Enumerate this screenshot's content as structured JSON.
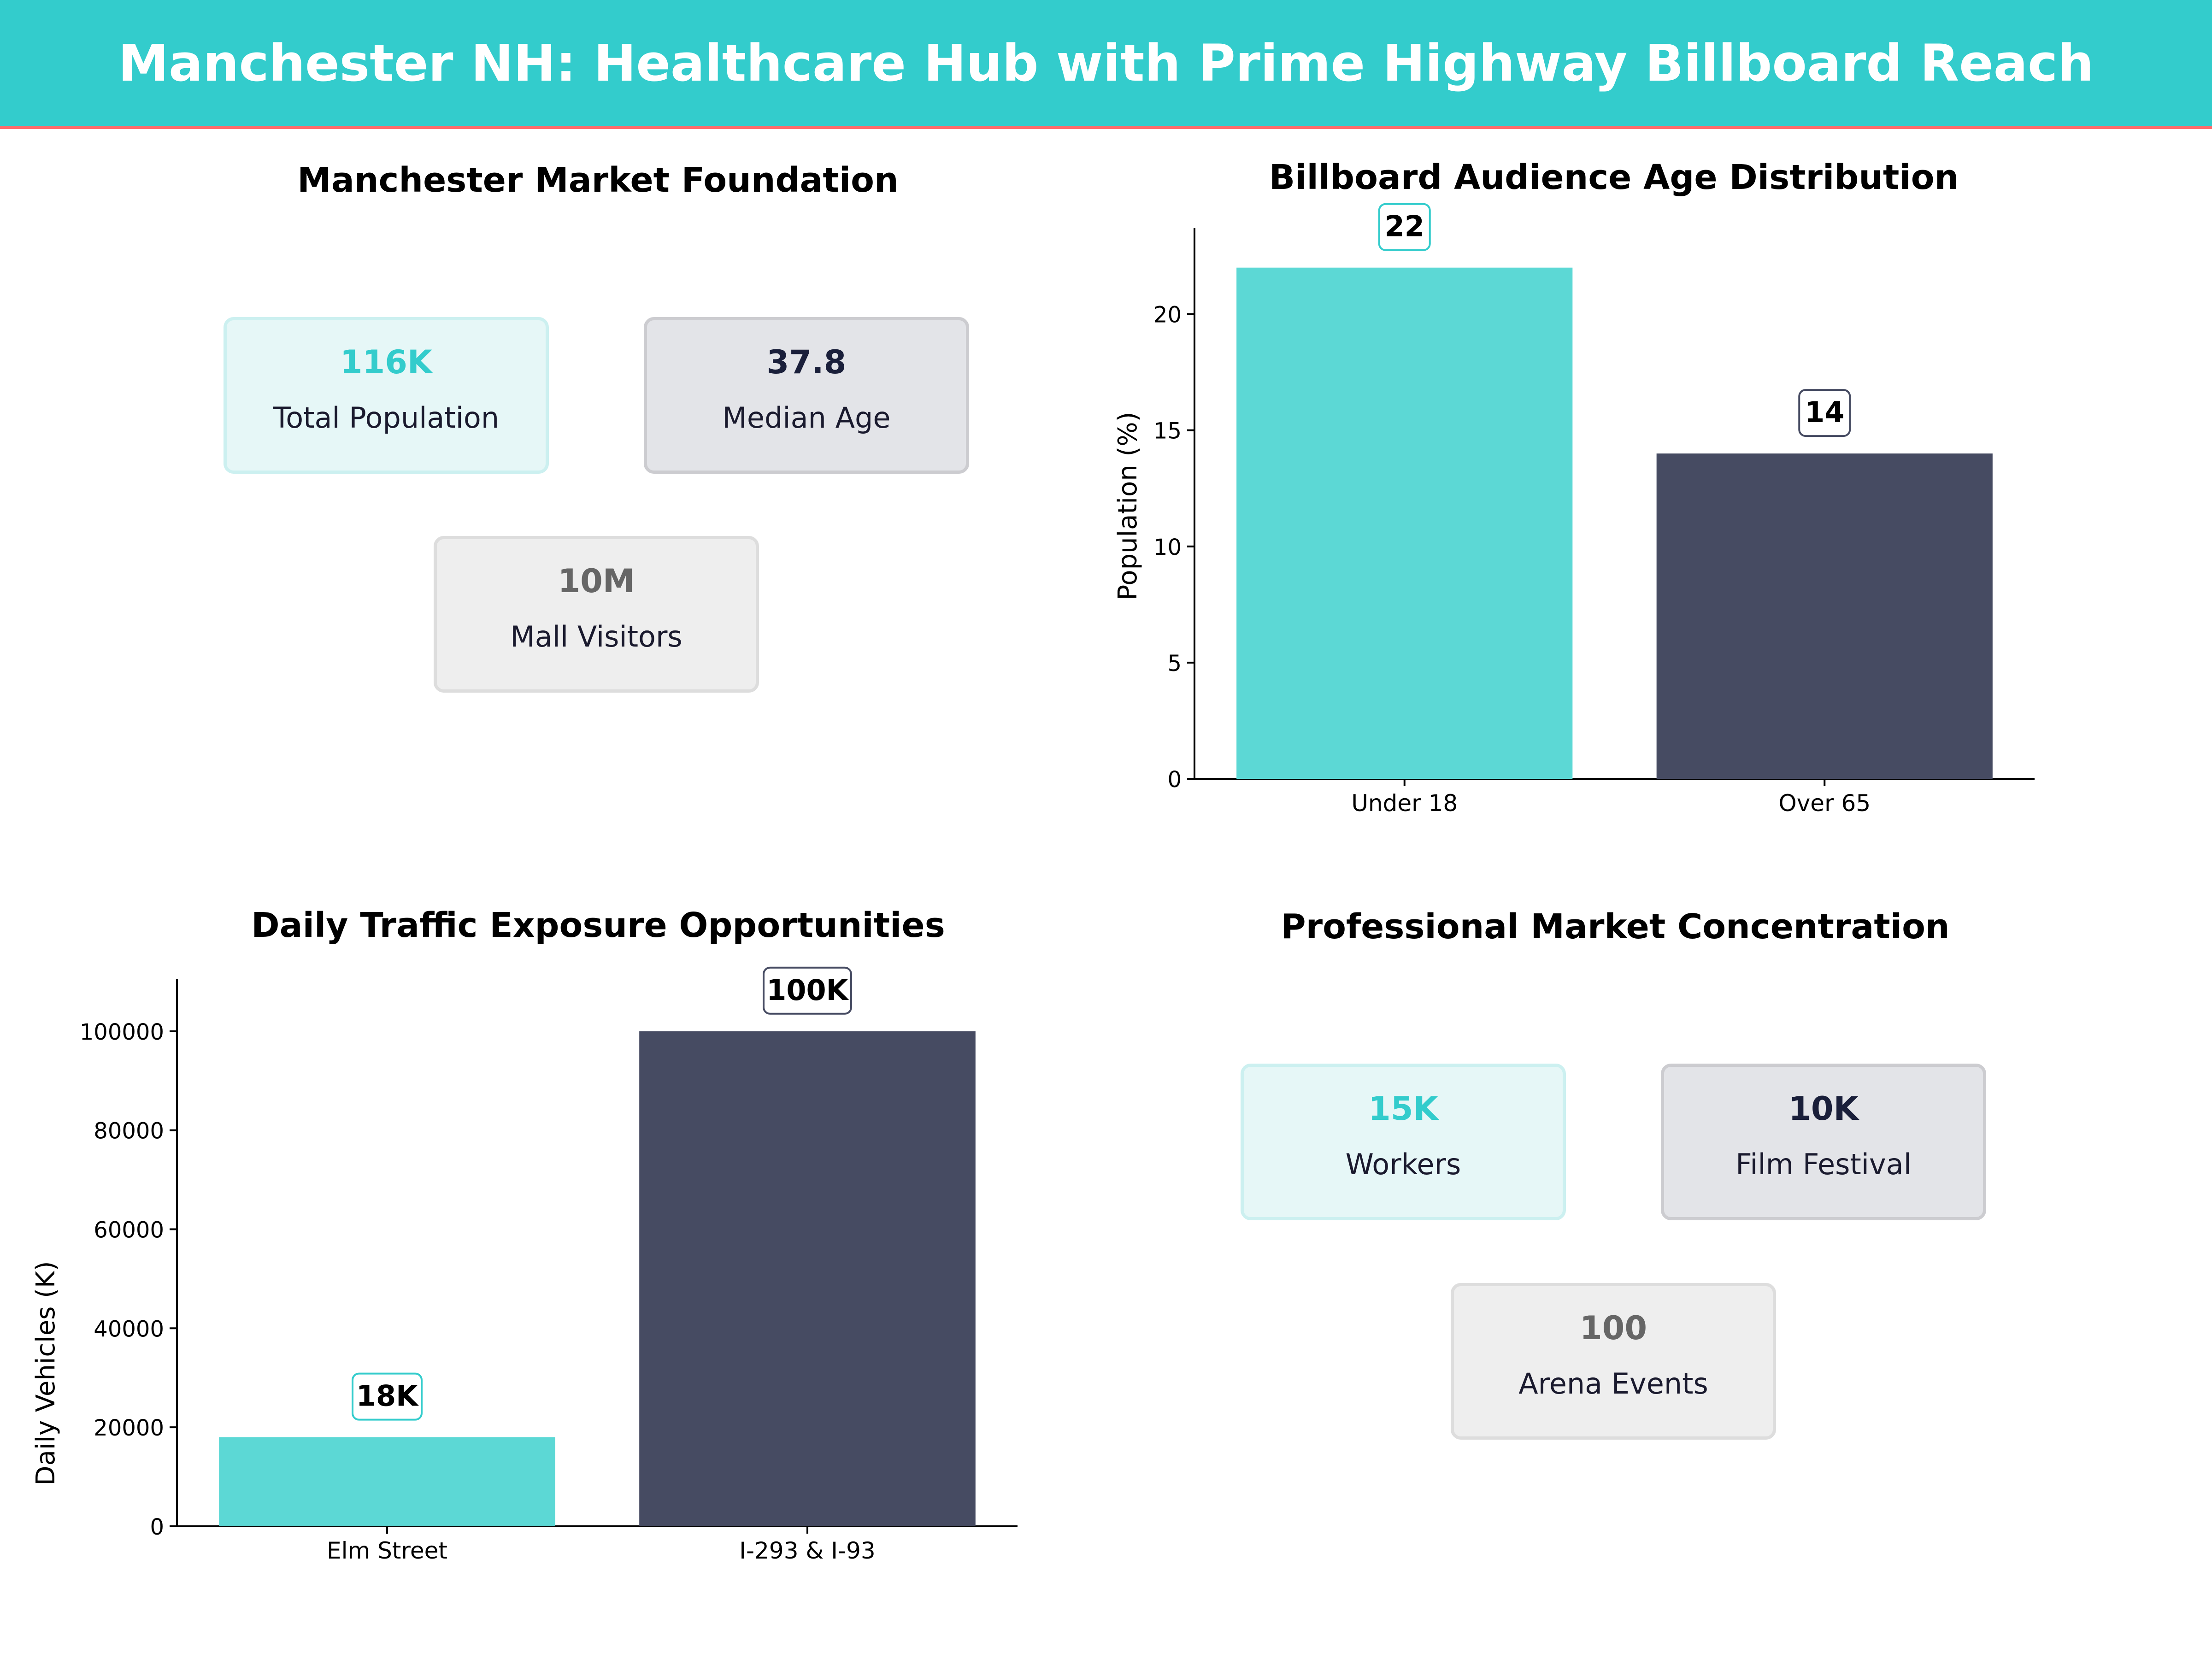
{
  "header": {
    "title": "Manchester NH: Healthcare Hub with Prime Highway Billboard Reach"
  },
  "colors": {
    "teal": "#33CCCC",
    "bar_teal": "#5CD8D5",
    "navy": "#464B62",
    "navy_text": "#1A1F3A",
    "gray_text": "#666666",
    "accent_line": "#FF6B6B"
  },
  "market_foundation": {
    "title": "Manchester Market Foundation",
    "cards": [
      {
        "value": "116K",
        "label": "Total Population"
      },
      {
        "value": "37.8",
        "label": "Median Age"
      },
      {
        "value": "10M",
        "label": "Mall Visitors"
      }
    ]
  },
  "professional_market": {
    "title": "Professional Market Concentration",
    "cards": [
      {
        "value": "15K",
        "label": "Workers"
      },
      {
        "value": "10K",
        "label": "Film Festival"
      },
      {
        "value": "100",
        "label": "Arena Events"
      }
    ]
  },
  "chart_data": [
    {
      "type": "bar",
      "title": "Billboard Audience Age Distribution",
      "categories": [
        "Under 18",
        "Over 65"
      ],
      "values": [
        22,
        14
      ],
      "value_labels": [
        "22",
        "14"
      ],
      "ylabel": "Population (%)",
      "xlabel": "",
      "ylim": [
        0,
        23.7
      ],
      "yticks": [
        0,
        5,
        10,
        15,
        20
      ],
      "grid": false
    },
    {
      "type": "bar",
      "title": "Daily Traffic Exposure Opportunities",
      "categories": [
        "Elm Street",
        "I-293 & I-93"
      ],
      "values": [
        18000,
        100000
      ],
      "value_labels": [
        "18K",
        "100K"
      ],
      "ylabel": "Daily Vehicles (K)",
      "xlabel": "",
      "ylim": [
        0,
        110500
      ],
      "yticks": [
        0,
        20000,
        40000,
        60000,
        80000,
        100000
      ],
      "grid": false
    }
  ]
}
